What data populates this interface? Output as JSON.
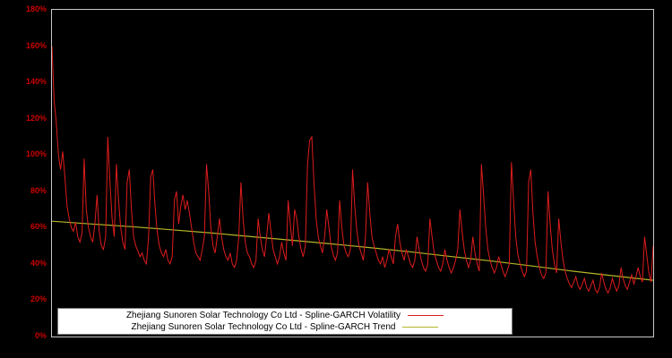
{
  "axis": {
    "y_ticks": [
      "0%",
      "20%",
      "40%",
      "60%",
      "80%",
      "100%",
      "120%",
      "140%",
      "160%",
      "180%"
    ],
    "y_max": 180
  },
  "colors": {
    "background": "#000000",
    "plot_border": "#c8c8c8",
    "tick_label": "#cc0000",
    "legend_bg": "#ffffff",
    "legend_text": "#000000",
    "volatility_line": "#dd1c1c",
    "trend_line": "#b5b52a"
  },
  "legend": [
    {
      "label": "Zhejiang Sunoren Solar Technology Co Ltd - Spline-GARCH Volatility",
      "color": "#dd1c1c"
    },
    {
      "label": "Zhejiang Sunoren Solar Technology Co Ltd - Spline-GARCH Trend",
      "color": "#b5b52a"
    }
  ],
  "chart_data": {
    "type": "line",
    "title": "",
    "xlabel": "",
    "ylabel": "",
    "y_unit": "percent",
    "ylim": [
      0,
      180
    ],
    "grid": false,
    "legend_position": "bottom-center",
    "series": [
      {
        "name": "Zhejiang Sunoren Solar Technology Co Ltd - Spline-GARCH Volatility",
        "color": "#dd1c1c",
        "values": [
          160,
          130,
          118,
          100,
          92,
          102,
          88,
          72,
          65,
          60,
          58,
          63,
          55,
          52,
          57,
          98,
          70,
          60,
          55,
          52,
          62,
          78,
          58,
          50,
          48,
          55,
          110,
          85,
          65,
          55,
          95,
          75,
          60,
          52,
          48,
          85,
          92,
          70,
          55,
          50,
          47,
          44,
          46,
          42,
          40,
          55,
          88,
          92,
          72,
          58,
          50,
          46,
          44,
          48,
          42,
          40,
          44,
          75,
          80,
          62,
          72,
          78,
          70,
          75,
          68,
          60,
          52,
          46,
          44,
          42,
          48,
          55,
          95,
          80,
          60,
          50,
          46,
          55,
          65,
          55,
          48,
          44,
          42,
          46,
          40,
          38,
          42,
          55,
          85,
          65,
          52,
          46,
          44,
          40,
          38,
          42,
          65,
          55,
          48,
          44,
          55,
          68,
          58,
          48,
          44,
          40,
          44,
          52,
          46,
          42,
          75,
          62,
          50,
          70,
          65,
          55,
          48,
          44,
          50,
          95,
          108,
          110,
          85,
          65,
          55,
          50,
          46,
          55,
          70,
          60,
          50,
          45,
          42,
          46,
          75,
          60,
          50,
          46,
          44,
          48,
          92,
          72,
          58,
          50,
          46,
          42,
          55,
          85,
          68,
          55,
          50,
          46,
          42,
          40,
          44,
          38,
          42,
          48,
          44,
          40,
          55,
          62,
          52,
          46,
          42,
          48,
          44,
          40,
          38,
          42,
          55,
          48,
          42,
          38,
          36,
          40,
          65,
          55,
          46,
          42,
          38,
          36,
          40,
          48,
          42,
          38,
          35,
          38,
          42,
          48,
          70,
          58,
          48,
          42,
          38,
          42,
          55,
          46,
          40,
          36,
          95,
          78,
          60,
          48,
          42,
          38,
          35,
          38,
          44,
          40,
          36,
          33,
          36,
          40,
          96,
          75,
          55,
          45,
          40,
          36,
          33,
          36,
          85,
          92,
          68,
          52,
          44,
          38,
          34,
          32,
          35,
          80,
          62,
          48,
          40,
          35,
          65,
          52,
          42,
          36,
          32,
          29,
          27,
          30,
          33,
          28,
          26,
          29,
          32,
          27,
          25,
          28,
          31,
          26,
          24,
          27,
          35,
          30,
          26,
          24,
          27,
          32,
          28,
          25,
          28,
          38,
          32,
          28,
          26,
          30,
          34,
          29,
          33,
          38,
          33,
          30,
          55,
          45,
          35,
          30,
          50
        ]
      },
      {
        "name": "Zhejiang Sunoren Solar Technology Co Ltd - Spline-GARCH Trend",
        "color": "#b5b52a",
        "values": [
          63.5,
          62,
          60.5,
          58.8,
          57,
          55,
          53,
          51,
          48.8,
          46.5,
          44,
          41.5,
          38.8,
          36,
          33.5,
          31
        ]
      }
    ]
  }
}
